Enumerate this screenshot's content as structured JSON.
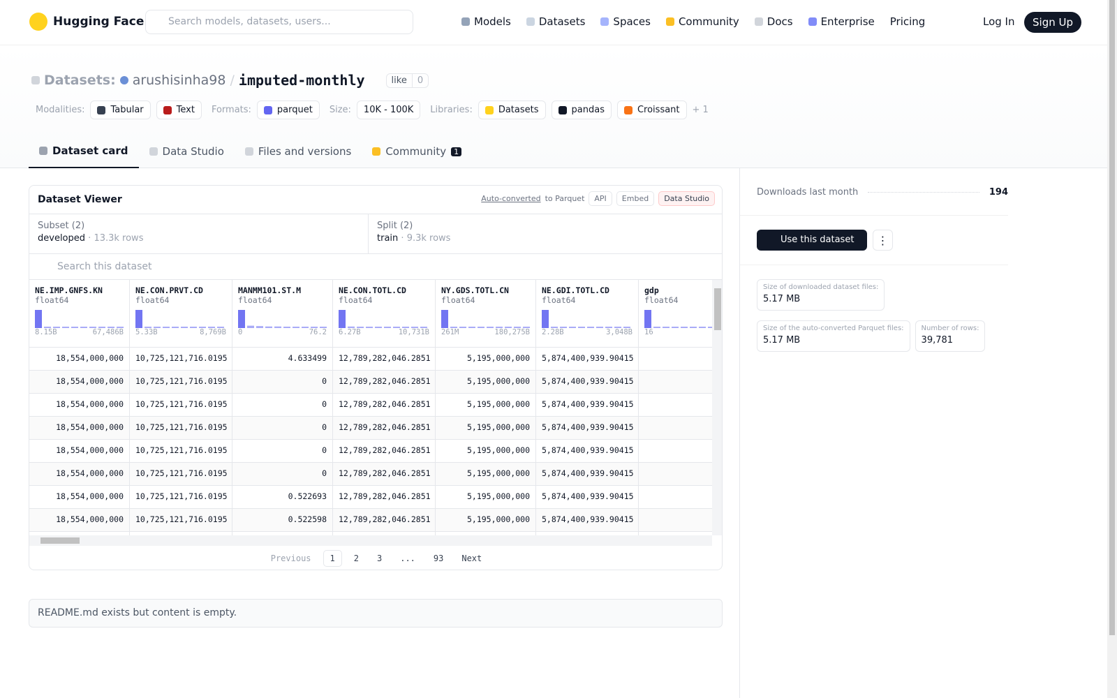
{
  "nav": {
    "brand": "Hugging Face",
    "search_placeholder": "Search models, datasets, users...",
    "links": [
      "Models",
      "Datasets",
      "Spaces",
      "Community",
      "Docs",
      "Enterprise",
      "Pricing"
    ],
    "login": "Log In",
    "signup": "Sign Up"
  },
  "header": {
    "kind": "Datasets:",
    "owner": "arushisinha98",
    "separator": "/",
    "name": "imputed-monthly",
    "like": "like",
    "likes": 0
  },
  "tags": [
    {
      "label": "Modalities:",
      "items": [
        "Tabular",
        "Text"
      ]
    },
    {
      "label": "Formats:",
      "items": [
        "parquet"
      ]
    },
    {
      "label": "Size:",
      "items": [
        "10K - 100K"
      ]
    },
    {
      "label": "Libraries:",
      "items": [
        "Datasets",
        "pandas",
        "Croissant"
      ]
    }
  ],
  "more_libraries": "+ 1",
  "tabs": [
    {
      "label": "Dataset card"
    },
    {
      "label": "Data Studio"
    },
    {
      "label": "Files and versions"
    },
    {
      "label": "Community",
      "badge": 1
    }
  ],
  "viewer": {
    "title": "Dataset Viewer",
    "auto_converted": "Auto-converted",
    "to_parquet": "to Parquet",
    "buttons": [
      "API",
      "Embed",
      "Data Studio"
    ],
    "subset": {
      "label": "Subset (2)",
      "value": "developed",
      "separator": "·",
      "rows": "13.3k rows"
    },
    "split": {
      "label": "Split (2)",
      "value": "train",
      "separator": "·",
      "rows": "9.3k rows"
    },
    "search_placeholder": "Search this dataset",
    "columns": [
      {
        "name": "NE.IMP.GNFS.KN",
        "type": "float64",
        "min": "8.15B",
        "max": "67,486B",
        "hist": [
          95,
          5,
          4,
          4,
          4,
          4,
          4,
          4,
          4,
          4
        ]
      },
      {
        "name": "NE.CON.PRVT.CD",
        "type": "float64",
        "min": "5.33B",
        "max": "8,769B",
        "hist": [
          95,
          6,
          4,
          4,
          4,
          4,
          4,
          4,
          4,
          4
        ]
      },
      {
        "name": "MANMM101.ST.M",
        "type": "float64",
        "min": "0",
        "max": "76.2",
        "hist": [
          92,
          12,
          10,
          8,
          8,
          6,
          5,
          5,
          4,
          4
        ]
      },
      {
        "name": "NE.CON.TOTL.CD",
        "type": "float64",
        "min": "6.27B",
        "max": "10,731B",
        "hist": [
          95,
          8,
          4,
          4,
          4,
          4,
          4,
          4,
          4,
          4
        ]
      },
      {
        "name": "NY.GDS.TOTL.CN",
        "type": "float64",
        "min": "261M",
        "max": "180,275B",
        "hist": [
          95,
          5,
          4,
          4,
          4,
          4,
          4,
          4,
          4,
          4
        ]
      },
      {
        "name": "NE.GDI.TOTL.CD",
        "type": "float64",
        "min": "2.28B",
        "max": "3,048B",
        "hist": [
          95,
          7,
          4,
          4,
          4,
          4,
          4,
          4,
          4,
          4
        ]
      },
      {
        "name": "gdp",
        "type": "float64",
        "min": "16",
        "hist": [
          95,
          5,
          4,
          4,
          4,
          4,
          4,
          4,
          4,
          4
        ]
      }
    ],
    "rows": [
      [
        "18,554,000,000",
        "10,725,121,716.0195",
        "4.633499",
        "12,789,282,046.2851",
        "5,195,000,000",
        "5,874,400,939.90415"
      ],
      [
        "18,554,000,000",
        "10,725,121,716.0195",
        "0",
        "12,789,282,046.2851",
        "5,195,000,000",
        "5,874,400,939.90415"
      ],
      [
        "18,554,000,000",
        "10,725,121,716.0195",
        "0",
        "12,789,282,046.2851",
        "5,195,000,000",
        "5,874,400,939.90415"
      ],
      [
        "18,554,000,000",
        "10,725,121,716.0195",
        "0",
        "12,789,282,046.2851",
        "5,195,000,000",
        "5,874,400,939.90415"
      ],
      [
        "18,554,000,000",
        "10,725,121,716.0195",
        "0",
        "12,789,282,046.2851",
        "5,195,000,000",
        "5,874,400,939.90415"
      ],
      [
        "18,554,000,000",
        "10,725,121,716.0195",
        "0",
        "12,789,282,046.2851",
        "5,195,000,000",
        "5,874,400,939.90415"
      ],
      [
        "18,554,000,000",
        "10,725,121,716.0195",
        "0.522693",
        "12,789,282,046.2851",
        "5,195,000,000",
        "5,874,400,939.90415"
      ],
      [
        "18,554,000,000",
        "10,725,121,716.0195",
        "0.522598",
        "12,789,282,046.2851",
        "5,195,000,000",
        "5,874,400,939.90415"
      ]
    ],
    "pagination": {
      "previous": "Previous",
      "pages": [
        "1",
        "2",
        "3",
        "...",
        "93"
      ],
      "next": "Next"
    }
  },
  "readme": "README.md exists but content is empty.",
  "sidebar": {
    "downloads_label": "Downloads last month",
    "downloads": 194,
    "use_button": "Use this dataset",
    "files": [
      {
        "label": "Size of downloaded dataset files:",
        "value": "5.17 MB"
      },
      {
        "label": "Size of the auto-converted Parquet files:",
        "value": "5.17 MB"
      },
      {
        "label": "Number of rows:",
        "value": "39,781"
      }
    ]
  }
}
